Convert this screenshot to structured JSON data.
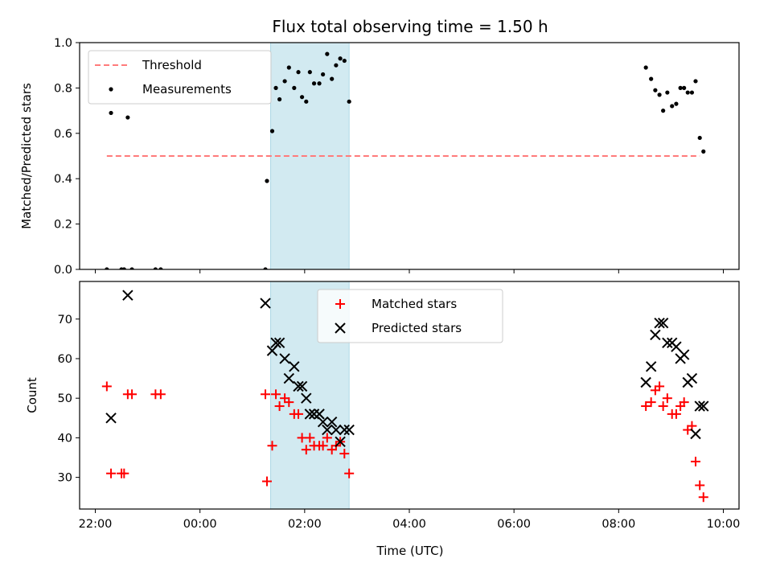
{
  "chart_data": {
    "title": "Flux total observing time = 1.50 h",
    "xlabel": "Time (UTC)",
    "x_units": "hours since 22:00 UTC",
    "x_tick_labels": [
      "22:00",
      "00:00",
      "02:00",
      "04:00",
      "06:00",
      "08:00",
      "10:00"
    ],
    "x_tick_values": [
      0,
      2,
      4,
      6,
      8,
      10,
      12
    ],
    "shaded_interval": {
      "start": 3.35,
      "end": 4.85,
      "color": "#add8e6"
    },
    "panels": [
      {
        "type": "scatter",
        "ylabel": "Matched/Predicted stars",
        "ylim": [
          0,
          1.0
        ],
        "yticks": [
          "0.0",
          "0.2",
          "0.4",
          "0.6",
          "0.8",
          "1.0"
        ],
        "legend_position": "upper-left",
        "threshold": {
          "name": "Threshold",
          "y": 0.5,
          "x_range": [
            0.22,
            11.55
          ],
          "color": "#ff7b7b"
        },
        "series": [
          {
            "name": "Measurements",
            "color": "#000000",
            "marker": "dot",
            "points": [
              [
                0.22,
                0.0
              ],
              [
                0.3,
                0.69
              ],
              [
                0.5,
                0.0
              ],
              [
                0.55,
                0.0
              ],
              [
                0.62,
                0.67
              ],
              [
                0.7,
                0.0
              ],
              [
                1.15,
                0.0
              ],
              [
                1.25,
                0.0
              ],
              [
                3.25,
                0.0
              ],
              [
                3.28,
                0.39
              ],
              [
                3.38,
                0.61
              ],
              [
                3.45,
                0.8
              ],
              [
                3.52,
                0.75
              ],
              [
                3.62,
                0.83
              ],
              [
                3.7,
                0.89
              ],
              [
                3.8,
                0.8
              ],
              [
                3.88,
                0.87
              ],
              [
                3.95,
                0.76
              ],
              [
                4.03,
                0.74
              ],
              [
                4.1,
                0.87
              ],
              [
                4.18,
                0.82
              ],
              [
                4.28,
                0.82
              ],
              [
                4.35,
                0.86
              ],
              [
                4.43,
                0.95
              ],
              [
                4.52,
                0.84
              ],
              [
                4.6,
                0.9
              ],
              [
                4.68,
                0.93
              ],
              [
                4.76,
                0.92
              ],
              [
                4.85,
                0.74
              ],
              [
                10.52,
                0.89
              ],
              [
                10.62,
                0.84
              ],
              [
                10.7,
                0.79
              ],
              [
                10.78,
                0.77
              ],
              [
                10.85,
                0.7
              ],
              [
                10.93,
                0.78
              ],
              [
                11.02,
                0.72
              ],
              [
                11.1,
                0.73
              ],
              [
                11.18,
                0.8
              ],
              [
                11.25,
                0.8
              ],
              [
                11.32,
                0.78
              ],
              [
                11.4,
                0.78
              ],
              [
                11.47,
                0.83
              ],
              [
                11.55,
                0.58
              ],
              [
                11.62,
                0.52
              ]
            ]
          }
        ]
      },
      {
        "type": "scatter",
        "ylabel": "Count",
        "ylim": [
          22,
          79.5
        ],
        "yticks": [
          "30",
          "40",
          "50",
          "60",
          "70"
        ],
        "legend_position": "upper-center",
        "series": [
          {
            "name": "Matched stars",
            "color": "#ff0000",
            "marker": "plus",
            "points": [
              [
                0.22,
                53
              ],
              [
                0.3,
                31
              ],
              [
                0.5,
                31
              ],
              [
                0.55,
                31
              ],
              [
                0.62,
                51
              ],
              [
                0.7,
                51
              ],
              [
                1.15,
                51
              ],
              [
                1.25,
                51
              ],
              [
                3.25,
                51
              ],
              [
                3.28,
                29
              ],
              [
                3.38,
                38
              ],
              [
                3.45,
                51
              ],
              [
                3.52,
                48
              ],
              [
                3.62,
                50
              ],
              [
                3.7,
                49
              ],
              [
                3.8,
                46
              ],
              [
                3.88,
                46
              ],
              [
                3.95,
                40
              ],
              [
                4.03,
                37
              ],
              [
                4.1,
                40
              ],
              [
                4.18,
                38
              ],
              [
                4.28,
                38
              ],
              [
                4.35,
                38
              ],
              [
                4.43,
                40
              ],
              [
                4.52,
                37
              ],
              [
                4.6,
                38
              ],
              [
                4.68,
                39
              ],
              [
                4.76,
                36
              ],
              [
                4.85,
                31
              ],
              [
                10.52,
                48
              ],
              [
                10.62,
                49
              ],
              [
                10.7,
                52
              ],
              [
                10.78,
                53
              ],
              [
                10.85,
                48
              ],
              [
                10.93,
                50
              ],
              [
                11.02,
                46
              ],
              [
                11.1,
                46
              ],
              [
                11.18,
                48
              ],
              [
                11.25,
                49
              ],
              [
                11.32,
                42
              ],
              [
                11.4,
                43
              ],
              [
                11.47,
                34
              ],
              [
                11.55,
                28
              ],
              [
                11.62,
                25
              ]
            ]
          },
          {
            "name": "Predicted stars",
            "color": "#000000",
            "marker": "x",
            "points": [
              [
                0.3,
                45
              ],
              [
                0.62,
                76
              ],
              [
                3.25,
                74
              ],
              [
                3.38,
                62
              ],
              [
                3.45,
                64
              ],
              [
                3.52,
                64
              ],
              [
                3.62,
                60
              ],
              [
                3.7,
                55
              ],
              [
                3.8,
                58
              ],
              [
                3.88,
                53
              ],
              [
                3.95,
                53
              ],
              [
                4.03,
                50
              ],
              [
                4.1,
                46
              ],
              [
                4.18,
                46
              ],
              [
                4.28,
                46
              ],
              [
                4.35,
                44
              ],
              [
                4.43,
                42
              ],
              [
                4.52,
                44
              ],
              [
                4.6,
                42
              ],
              [
                4.68,
                39
              ],
              [
                4.76,
                42
              ],
              [
                4.85,
                42
              ],
              [
                10.52,
                54
              ],
              [
                10.62,
                58
              ],
              [
                10.7,
                66
              ],
              [
                10.78,
                69
              ],
              [
                10.85,
                69
              ],
              [
                10.93,
                64
              ],
              [
                11.02,
                64
              ],
              [
                11.1,
                63
              ],
              [
                11.18,
                60
              ],
              [
                11.25,
                61
              ],
              [
                11.32,
                54
              ],
              [
                11.4,
                55
              ],
              [
                11.47,
                41
              ],
              [
                11.55,
                48
              ],
              [
                11.62,
                48
              ]
            ]
          }
        ]
      }
    ]
  }
}
